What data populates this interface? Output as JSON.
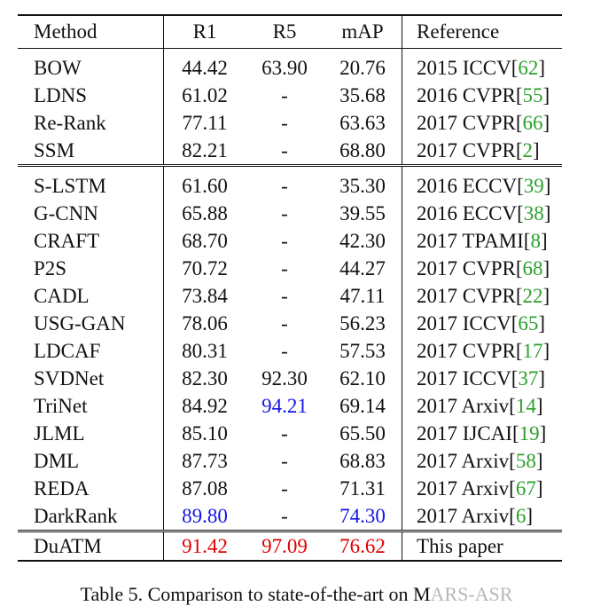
{
  "table": {
    "headers": [
      "Method",
      "R1",
      "R5",
      "mAP",
      "Reference"
    ],
    "group1": [
      {
        "method": "BOW",
        "r1": "44.42",
        "r5": "63.90",
        "map": "20.76",
        "ref_text": "2015 ICCV",
        "ref_num": "62"
      },
      {
        "method": "LDNS",
        "r1": "61.02",
        "r5": "-",
        "map": "35.68",
        "ref_text": "2016 CVPR",
        "ref_num": "55"
      },
      {
        "method": "Re-Rank",
        "r1": "77.11",
        "r5": "-",
        "map": "63.63",
        "ref_text": "2017 CVPR",
        "ref_num": "66"
      },
      {
        "method": "SSM",
        "r1": "82.21",
        "r5": "-",
        "map": "68.80",
        "ref_text": "2017 CVPR",
        "ref_num": "2"
      }
    ],
    "group2": [
      {
        "method": "S-LSTM",
        "r1": "61.60",
        "r5": "-",
        "map": "35.30",
        "ref_text": "2016 ECCV",
        "ref_num": "39"
      },
      {
        "method": "G-CNN",
        "r1": "65.88",
        "r5": "-",
        "map": "39.55",
        "ref_text": "2016 ECCV",
        "ref_num": "38"
      },
      {
        "method": "CRAFT",
        "r1": "68.70",
        "r5": "-",
        "map": "42.30",
        "ref_text": "2017 TPAMI",
        "ref_num": "8"
      },
      {
        "method": "P2S",
        "r1": "70.72",
        "r5": "-",
        "map": "44.27",
        "ref_text": "2017 CVPR",
        "ref_num": "68"
      },
      {
        "method": "CADL",
        "r1": "73.84",
        "r5": "-",
        "map": "47.11",
        "ref_text": "2017 CVPR",
        "ref_num": "22"
      },
      {
        "method": "USG-GAN",
        "r1": "78.06",
        "r5": "-",
        "map": "56.23",
        "ref_text": "2017 ICCV",
        "ref_num": "65"
      },
      {
        "method": "LDCAF",
        "r1": "80.31",
        "r5": "-",
        "map": "57.53",
        "ref_text": "2017 CVPR",
        "ref_num": "17"
      },
      {
        "method": "SVDNet",
        "r1": "82.30",
        "r5": "92.30",
        "map": "62.10",
        "ref_text": "2017 ICCV",
        "ref_num": "37"
      },
      {
        "method": "TriNet",
        "r1": "84.92",
        "r5": "94.21",
        "map": "69.14",
        "ref_text": "2017 Arxiv",
        "ref_num": "14"
      },
      {
        "method": "JLML",
        "r1": "85.10",
        "r5": "-",
        "map": "65.50",
        "ref_text": "2017 IJCAI",
        "ref_num": "19"
      },
      {
        "method": "DML",
        "r1": "87.73",
        "r5": "-",
        "map": "68.83",
        "ref_text": "2017 Arxiv",
        "ref_num": "58"
      },
      {
        "method": "REDA",
        "r1": "87.08",
        "r5": "-",
        "map": "71.31",
        "ref_text": "2017 Arxiv",
        "ref_num": "67"
      },
      {
        "method": "DarkRank",
        "r1": "89.80",
        "r5": "-",
        "map": "74.30",
        "ref_text": "2017 Arxiv",
        "ref_num": "6"
      }
    ],
    "ours": {
      "method": "DuATM",
      "r1": "91.42",
      "r5": "97.09",
      "map": "76.62",
      "ref_text": "This paper"
    }
  },
  "caption": {
    "text": "Table 5. Comparison to state-of-the-art on M",
    "watermark": "ARS-ASR"
  },
  "colors": {
    "best": "#e00000",
    "second": "#1414e6",
    "citation": "#2ca02c"
  }
}
